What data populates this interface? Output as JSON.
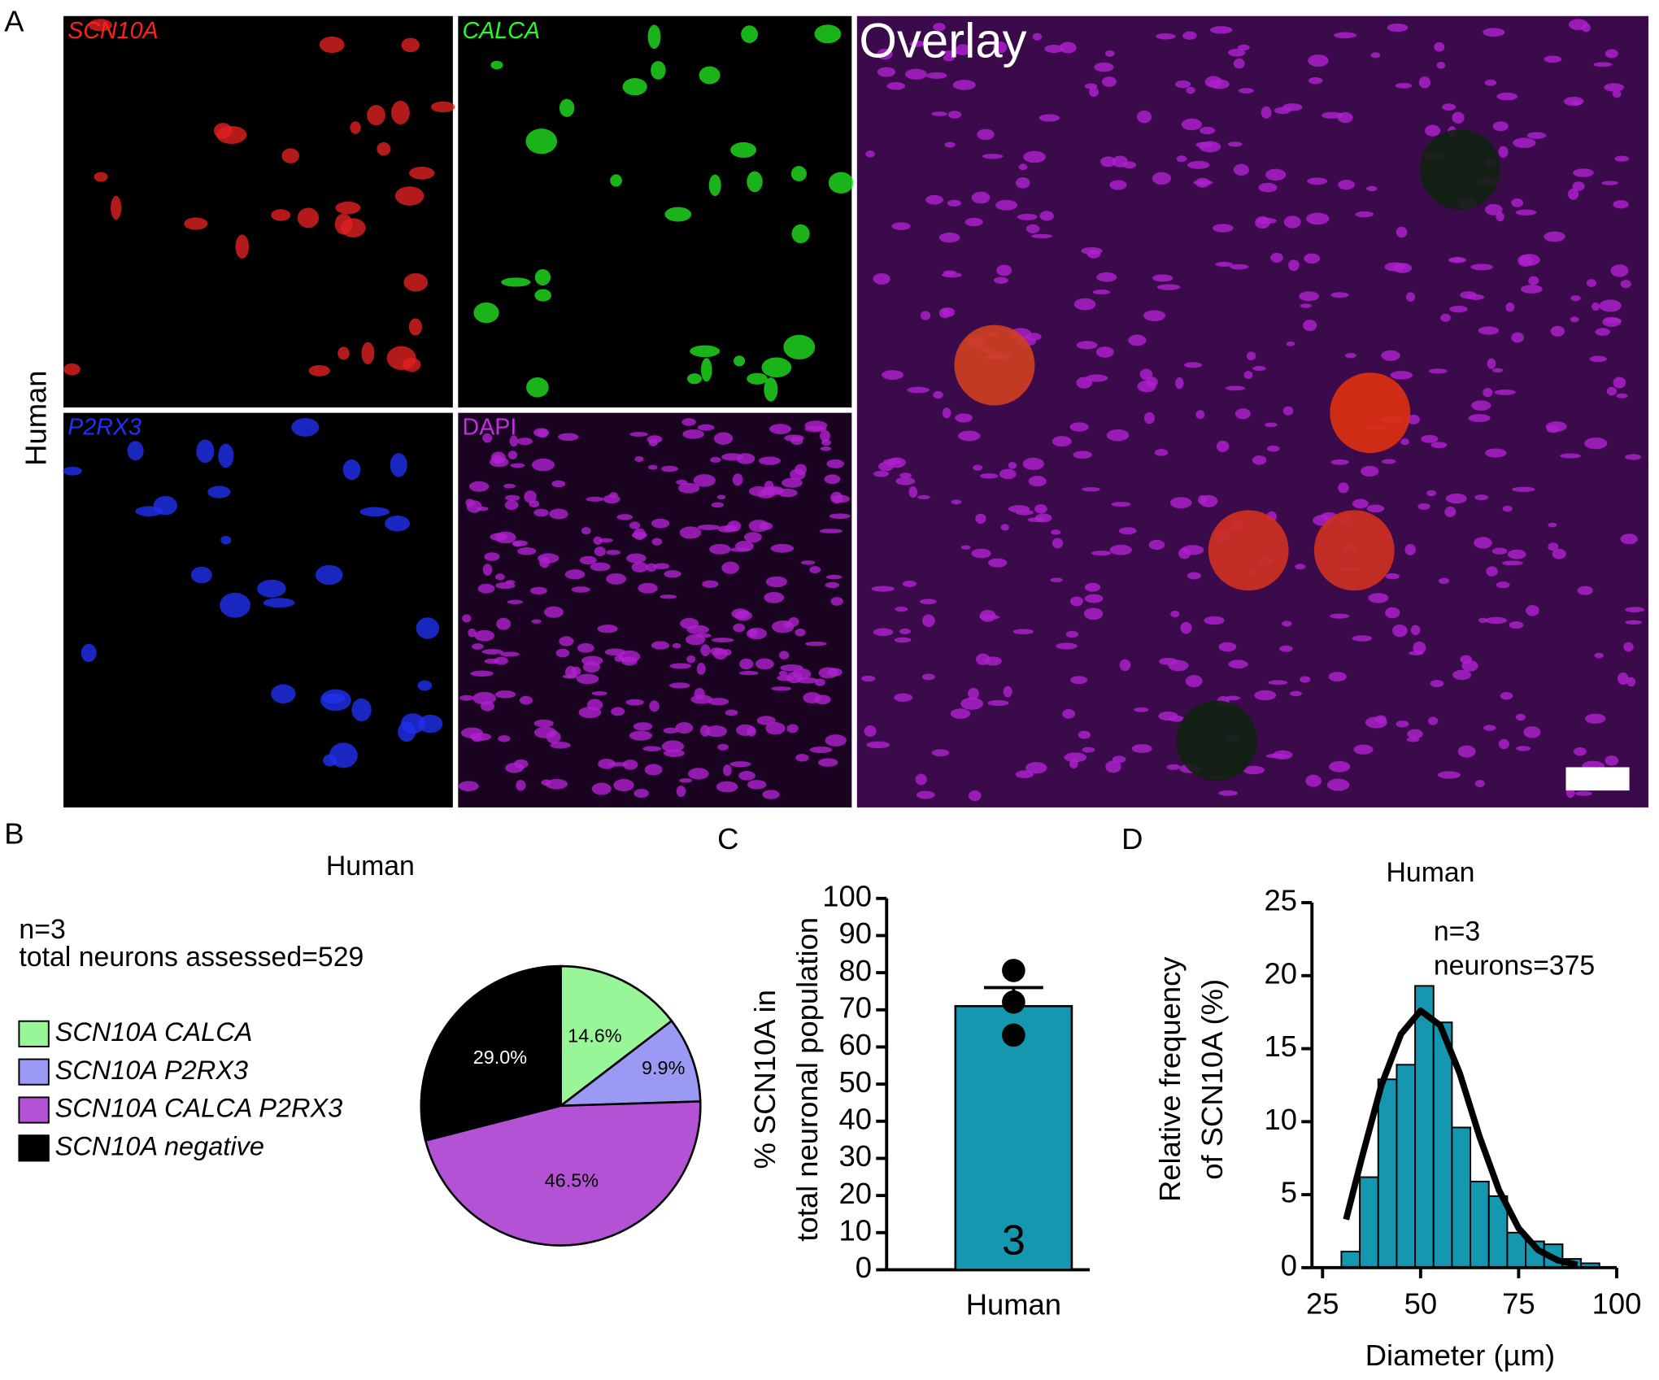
{
  "figure": {
    "panel_letters": [
      "A",
      "B",
      "C",
      "D"
    ],
    "row_label": "Human",
    "image_labels": [
      "SCN10A",
      "CALCA",
      "P2RX3",
      "DAPI",
      "Overlay"
    ]
  },
  "chart_data": [
    {
      "type": "pie",
      "title": "Human",
      "annotations": [
        "n=3",
        "total neurons assessed=529"
      ],
      "categories": [
        "SCN10A CALCA",
        "SCN10A P2RX3",
        "SCN10A CALCA P2RX3",
        "SCN10A negative"
      ],
      "values": [
        14.6,
        9.9,
        46.5,
        29.0
      ],
      "value_labels": [
        "14.6%",
        "9.9%",
        "46.5%",
        "29.0%"
      ],
      "colors": [
        "#98f598",
        "#9a9af5",
        "#b452d6",
        "#000000"
      ]
    },
    {
      "type": "bar",
      "y_label": [
        "% SCN10A in",
        "total neuronal population"
      ],
      "categories": [
        "Human"
      ],
      "values": [
        71
      ],
      "errors": [
        5
      ],
      "points": [
        80.6,
        72.1,
        63.2
      ],
      "value_labels": [
        "3"
      ],
      "color": "#1597b0",
      "ylim": [
        0,
        100
      ],
      "yticks": [
        0,
        10,
        20,
        30,
        40,
        50,
        60,
        70,
        80,
        90,
        100
      ]
    },
    {
      "type": "histogram",
      "title": "Human",
      "annotations": [
        "n=3",
        "neurons=375"
      ],
      "x_label": "Diameter (µm)",
      "y_label": [
        "Relative frequency",
        "of SCN10A  (%)"
      ],
      "color": "#1597b0",
      "bins": [
        29.8,
        34.5,
        39.2,
        43.9,
        48.6,
        53.3,
        58.0,
        62.7,
        67.4,
        72.1,
        76.8,
        81.5,
        86.2,
        90.9,
        95.6
      ],
      "values": [
        1.1,
        6.2,
        12.9,
        13.9,
        19.3,
        16.8,
        9.6,
        5.9,
        4.9,
        2.4,
        1.8,
        1.6,
        0.6,
        0.3
      ],
      "fit": {
        "x": [
          31,
          35,
          40,
          45,
          50,
          55,
          60,
          65,
          70,
          75,
          80,
          85,
          90
        ],
        "values": [
          3.3,
          7.5,
          12.5,
          16.0,
          17.6,
          16.6,
          13.3,
          9.0,
          5.3,
          2.7,
          1.2,
          0.5,
          0.2
        ]
      },
      "xlim": [
        22.3,
        100
      ],
      "xticks": [
        25,
        50,
        75,
        100
      ],
      "ylim": [
        0,
        25
      ],
      "yticks": [
        0,
        5,
        10,
        15,
        20,
        25
      ]
    }
  ]
}
